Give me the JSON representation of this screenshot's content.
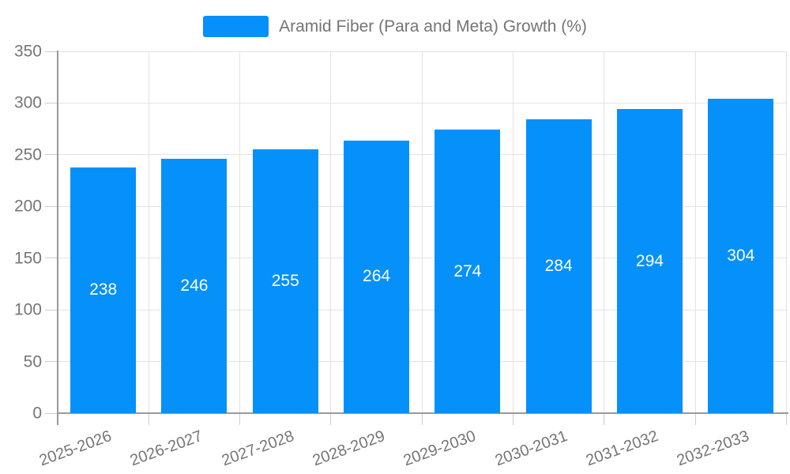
{
  "chart_data": {
    "type": "bar",
    "title": "",
    "categories": [
      "2025-2026",
      "2026-2027",
      "2027-2028",
      "2028-2029",
      "2029-2030",
      "2030-2031",
      "2031-2032",
      "2032-2033"
    ],
    "series": [
      {
        "name": "Aramid Fiber (Para and Meta) Growth (%)",
        "values": [
          238,
          246,
          255,
          264,
          274,
          284,
          294,
          304
        ],
        "color": "#0590fa"
      }
    ],
    "xlabel": "",
    "ylabel": "",
    "ylim": [
      0,
      350
    ],
    "yticks": [
      0,
      50,
      100,
      150,
      200,
      250,
      300,
      350
    ],
    "grid": true,
    "value_labels_inside_bars": true,
    "legend_position": "top-center",
    "x_tick_rotation_deg": -20,
    "colors": {
      "bar": "#0590fa",
      "bar_value_label": "#ffffff",
      "axis_text": "#757575",
      "legend_text": "#757575",
      "grid_line": "#e3e3e3",
      "tick_mark": "#cccccc",
      "axis_line": "#9a9a9a",
      "background": "#ffffff"
    }
  }
}
